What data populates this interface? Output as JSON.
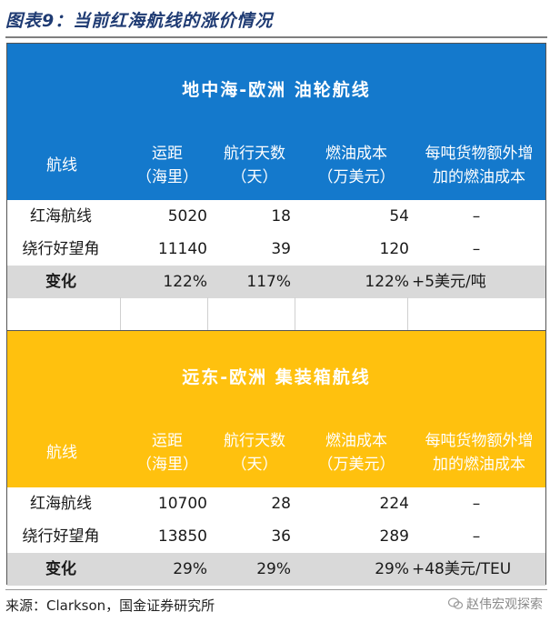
{
  "figure": {
    "title": "图表9：当前红海航线的涨价情况",
    "source": "来源：Clarkson，国金证券研究所",
    "watermark": "赵伟宏观探索"
  },
  "colors": {
    "blue_band": "#1479cc",
    "yellow_band": "#ffc10e",
    "change_row": "#d9d9d9"
  },
  "headers": {
    "route": "航线",
    "distance": [
      "运距",
      "（海里）"
    ],
    "days": [
      "航行天数",
      "（天）"
    ],
    "fuel": [
      "燃油成本",
      "（万美元）"
    ],
    "extra": [
      "每吨货物额外增",
      "加的燃油成本"
    ]
  },
  "tables": [
    {
      "title": "地中海-欧洲  油轮航线",
      "rows": [
        {
          "route": "红海航线",
          "distance": "5020",
          "days": "18",
          "fuel": "54",
          "extra": "–"
        },
        {
          "route": "绕行好望角",
          "distance": "11140",
          "days": "39",
          "fuel": "120",
          "extra": "–"
        }
      ],
      "change": {
        "label": "变化",
        "distance": "122%",
        "days": "117%",
        "fuel": "122%",
        "extra": "+5美元/吨"
      }
    },
    {
      "title": "远东-欧洲  集装箱航线",
      "rows": [
        {
          "route": "红海航线",
          "distance": "10700",
          "days": "28",
          "fuel": "224",
          "extra": "–"
        },
        {
          "route": "绕行好望角",
          "distance": "13850",
          "days": "36",
          "fuel": "289",
          "extra": "–"
        }
      ],
      "change": {
        "label": "变化",
        "distance": "29%",
        "days": "29%",
        "fuel": "29%",
        "extra": "+48美元/TEU"
      }
    }
  ]
}
